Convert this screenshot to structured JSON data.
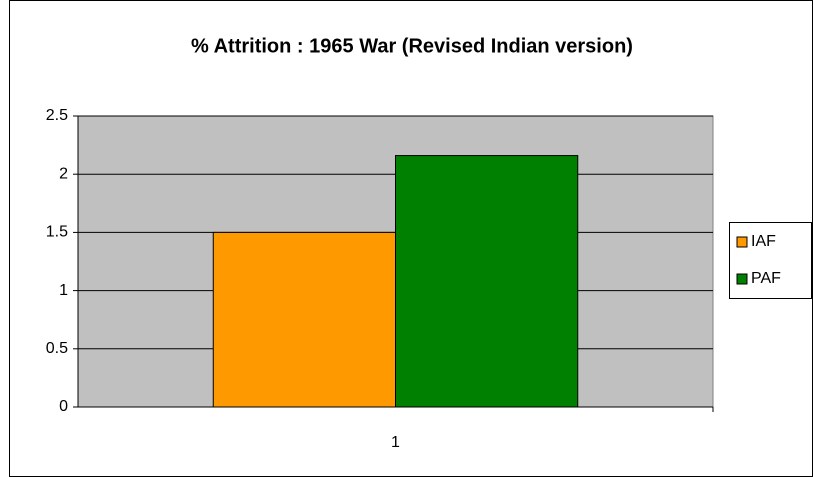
{
  "chart_data": {
    "type": "bar",
    "title": "% Attrition : 1965 War (Revised Indian version)",
    "categories": [
      "1"
    ],
    "series": [
      {
        "name": "IAF",
        "color": "#ff9900",
        "values": [
          1.5
        ]
      },
      {
        "name": "PAF",
        "color": "#008000",
        "values": [
          2.16
        ]
      }
    ],
    "ylim": [
      0,
      2.5
    ],
    "yticks": [
      0,
      0.5,
      1,
      1.5,
      2,
      2.5
    ],
    "grid": true,
    "legend": "right"
  }
}
